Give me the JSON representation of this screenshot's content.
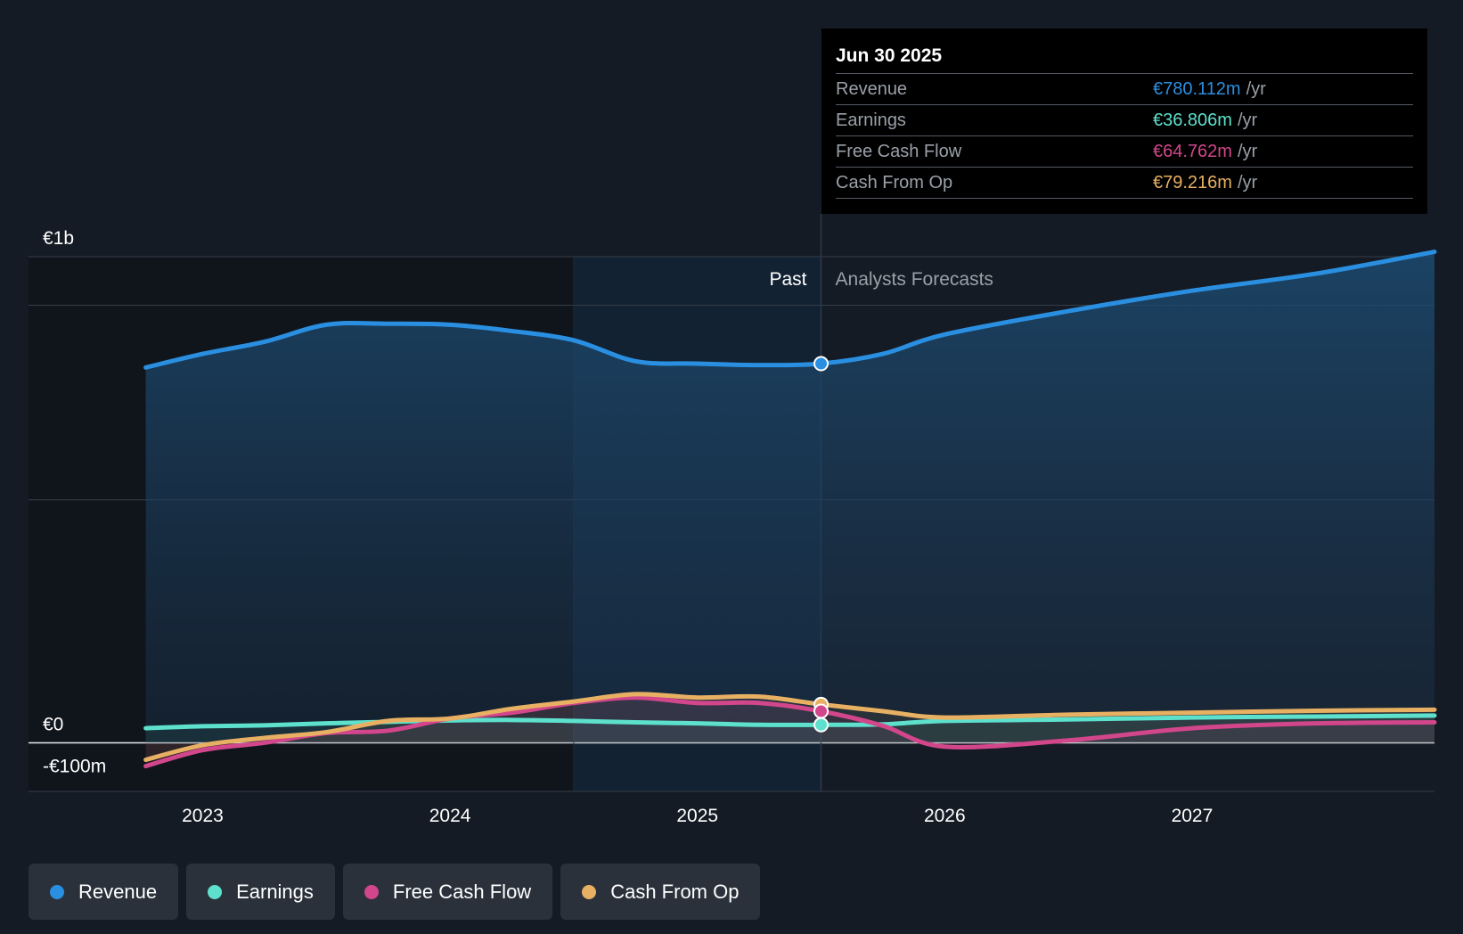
{
  "colors": {
    "revenue": "#2a8fe0",
    "earnings": "#5de0cc",
    "fcf": "#d2468b",
    "cfo": "#e8b062",
    "background": "#151b24"
  },
  "tooltip": {
    "date": "Jun 30 2025",
    "rows": [
      {
        "label": "Revenue",
        "value": "€780.112m",
        "unit": "/yr",
        "color": "#2a8fe0"
      },
      {
        "label": "Earnings",
        "value": "€36.806m",
        "unit": "/yr",
        "color": "#5de0cc"
      },
      {
        "label": "Free Cash Flow",
        "value": "€64.762m",
        "unit": "/yr",
        "color": "#d2468b"
      },
      {
        "label": "Cash From Op",
        "value": "€79.216m",
        "unit": "/yr",
        "color": "#e8b062"
      }
    ]
  },
  "sections": {
    "past": "Past",
    "forecast": "Analysts Forecasts"
  },
  "legend": [
    {
      "label": "Revenue",
      "color": "#2a8fe0"
    },
    {
      "label": "Earnings",
      "color": "#5de0cc"
    },
    {
      "label": "Free Cash Flow",
      "color": "#d2468b"
    },
    {
      "label": "Cash From Op",
      "color": "#e8b062"
    }
  ],
  "chart_data": {
    "type": "line",
    "title": "",
    "xlabel": "",
    "ylabel": "",
    "x_ticks": [
      "2023",
      "2024",
      "2025",
      "2026",
      "2027"
    ],
    "y_ticks": [
      {
        "value": 1000,
        "label": "€1b"
      },
      {
        "value": 0,
        "label": "€0"
      },
      {
        "value": -100,
        "label": "-€100m"
      }
    ],
    "xlim": [
      2022.53,
      2027.98
    ],
    "ylim": [
      -100,
      1000
    ],
    "past_end": 2025.5,
    "highlight_start": 2024.5,
    "series": [
      {
        "name": "Revenue",
        "key": "revenue",
        "area": true,
        "points": [
          [
            2022.77,
            772
          ],
          [
            2023.0,
            800
          ],
          [
            2023.25,
            825
          ],
          [
            2023.5,
            860
          ],
          [
            2023.75,
            862
          ],
          [
            2024.0,
            860
          ],
          [
            2024.25,
            847
          ],
          [
            2024.5,
            828
          ],
          [
            2024.75,
            785
          ],
          [
            2025.0,
            780
          ],
          [
            2025.25,
            777
          ],
          [
            2025.5,
            780
          ],
          [
            2025.75,
            800
          ],
          [
            2026.0,
            840
          ],
          [
            2026.5,
            888
          ],
          [
            2027.0,
            930
          ],
          [
            2027.5,
            965
          ],
          [
            2027.98,
            1010
          ]
        ]
      },
      {
        "name": "Earnings",
        "key": "earnings",
        "points": [
          [
            2022.77,
            30
          ],
          [
            2023.0,
            34
          ],
          [
            2023.25,
            36
          ],
          [
            2023.5,
            40
          ],
          [
            2023.75,
            43
          ],
          [
            2024.0,
            46
          ],
          [
            2024.25,
            47
          ],
          [
            2024.5,
            45
          ],
          [
            2024.75,
            42
          ],
          [
            2025.0,
            40
          ],
          [
            2025.25,
            37
          ],
          [
            2025.5,
            37
          ],
          [
            2025.75,
            38
          ],
          [
            2026.0,
            45
          ],
          [
            2026.5,
            48
          ],
          [
            2027.0,
            52
          ],
          [
            2027.5,
            54
          ],
          [
            2027.98,
            56
          ]
        ]
      },
      {
        "name": "Free Cash Flow",
        "key": "fcf",
        "points": [
          [
            2022.77,
            -48
          ],
          [
            2023.0,
            -15
          ],
          [
            2023.25,
            0
          ],
          [
            2023.5,
            20
          ],
          [
            2023.75,
            25
          ],
          [
            2024.0,
            50
          ],
          [
            2024.25,
            62
          ],
          [
            2024.5,
            82
          ],
          [
            2024.75,
            93
          ],
          [
            2025.0,
            82
          ],
          [
            2025.25,
            82
          ],
          [
            2025.5,
            65
          ],
          [
            2025.75,
            35
          ],
          [
            2026.0,
            -8
          ],
          [
            2026.5,
            5
          ],
          [
            2027.0,
            30
          ],
          [
            2027.5,
            40
          ],
          [
            2027.98,
            42
          ]
        ]
      },
      {
        "name": "Cash From Op",
        "key": "cfo",
        "points": [
          [
            2022.77,
            -35
          ],
          [
            2023.0,
            -5
          ],
          [
            2023.25,
            10
          ],
          [
            2023.5,
            22
          ],
          [
            2023.75,
            45
          ],
          [
            2024.0,
            50
          ],
          [
            2024.25,
            70
          ],
          [
            2024.5,
            85
          ],
          [
            2024.75,
            100
          ],
          [
            2025.0,
            93
          ],
          [
            2025.25,
            95
          ],
          [
            2025.5,
            79
          ],
          [
            2025.75,
            65
          ],
          [
            2026.0,
            52
          ],
          [
            2026.5,
            58
          ],
          [
            2027.0,
            62
          ],
          [
            2027.5,
            66
          ],
          [
            2027.98,
            68
          ]
        ]
      }
    ],
    "markers": [
      {
        "x": 2025.5,
        "y": 780,
        "series": "revenue"
      },
      {
        "x": 2025.5,
        "y": 79,
        "series": "cfo"
      },
      {
        "x": 2025.5,
        "y": 65,
        "series": "fcf"
      },
      {
        "x": 2025.5,
        "y": 37,
        "series": "earnings"
      }
    ]
  }
}
